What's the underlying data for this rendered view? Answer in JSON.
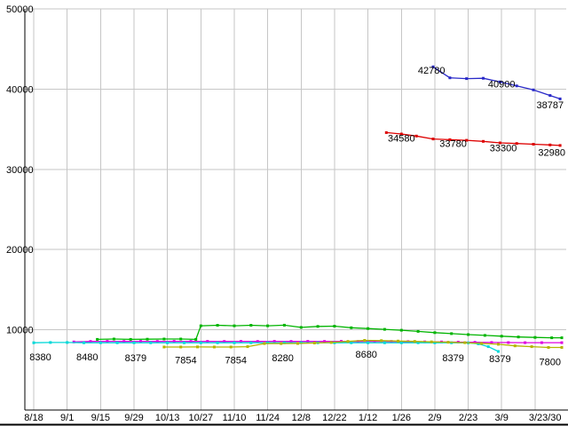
{
  "chart_data": {
    "type": "line",
    "title": "",
    "xlabel": "",
    "ylabel": "",
    "ylim": [
      0,
      50000
    ],
    "grid": true,
    "legend": "none",
    "background": "#ffffff",
    "grid_color": "#c6c6c6",
    "axis_color": "#000000",
    "x_ticks": [
      {
        "label": "8/18",
        "t": 0
      },
      {
        "label": "9/1",
        "t": 1
      },
      {
        "label": "9/15",
        "t": 2
      },
      {
        "label": "9/29",
        "t": 3
      },
      {
        "label": "10/13",
        "t": 4
      },
      {
        "label": "10/27",
        "t": 5
      },
      {
        "label": "11/10",
        "t": 6
      },
      {
        "label": "11/24",
        "t": 7
      },
      {
        "label": "12/8",
        "t": 8
      },
      {
        "label": "12/22",
        "t": 9
      },
      {
        "label": "1/12",
        "t": 10
      },
      {
        "label": "1/26",
        "t": 11
      },
      {
        "label": "2/9",
        "t": 12
      },
      {
        "label": "2/23",
        "t": 13
      },
      {
        "label": "3/9",
        "t": 14
      },
      {
        "label": "3/23/30",
        "t": 15,
        "label_t": 15.3
      }
    ],
    "y_ticks": [
      {
        "label": "10000",
        "v": 10000
      },
      {
        "label": "20000",
        "v": 20000
      },
      {
        "label": "30000",
        "v": 30000
      },
      {
        "label": "40000",
        "v": 40000
      },
      {
        "label": "50000",
        "v": 50000
      }
    ],
    "series": [
      {
        "name": "series-blue",
        "color": "#2929c8",
        "points": [
          [
            11.95,
            42780
          ],
          [
            12.45,
            41400
          ],
          [
            12.95,
            41300
          ],
          [
            13.45,
            41350
          ],
          [
            13.95,
            40900
          ],
          [
            14.45,
            40400
          ],
          [
            14.95,
            39900
          ],
          [
            15.45,
            39200
          ],
          [
            15.75,
            38787
          ]
        ]
      },
      {
        "name": "series-red",
        "color": "#dd0000",
        "points": [
          [
            10.55,
            34580
          ],
          [
            11.0,
            34400
          ],
          [
            11.45,
            34150
          ],
          [
            11.95,
            33780
          ],
          [
            12.45,
            33700
          ],
          [
            12.95,
            33620
          ],
          [
            13.45,
            33480
          ],
          [
            13.95,
            33300
          ],
          [
            14.45,
            33220
          ],
          [
            14.95,
            33130
          ],
          [
            15.45,
            33040
          ],
          [
            15.75,
            32980
          ]
        ]
      },
      {
        "name": "series-green",
        "color": "#00b400",
        "points": [
          [
            1.9,
            8800
          ],
          [
            2.4,
            8850
          ],
          [
            2.9,
            8800
          ],
          [
            3.4,
            8830
          ],
          [
            3.9,
            8850
          ],
          [
            4.4,
            8850
          ],
          [
            4.85,
            8800
          ],
          [
            5.0,
            10500
          ],
          [
            5.5,
            10560
          ],
          [
            6.0,
            10500
          ],
          [
            6.5,
            10560
          ],
          [
            7.0,
            10500
          ],
          [
            7.5,
            10570
          ],
          [
            8.0,
            10300
          ],
          [
            8.5,
            10420
          ],
          [
            9.0,
            10450
          ],
          [
            9.5,
            10250
          ],
          [
            10.0,
            10150
          ],
          [
            10.5,
            10050
          ],
          [
            11.0,
            9950
          ],
          [
            11.5,
            9800
          ],
          [
            12.0,
            9650
          ],
          [
            12.5,
            9520
          ],
          [
            13.0,
            9400
          ],
          [
            13.5,
            9300
          ],
          [
            14.0,
            9200
          ],
          [
            14.5,
            9100
          ],
          [
            15.0,
            9050
          ],
          [
            15.5,
            9000
          ],
          [
            15.8,
            9000
          ]
        ]
      },
      {
        "name": "series-magenta",
        "color": "#e000e0",
        "points": [
          [
            1.2,
            8480
          ],
          [
            1.7,
            8550
          ],
          [
            2.2,
            8560
          ],
          [
            2.7,
            8550
          ],
          [
            3.2,
            8560
          ],
          [
            3.7,
            8550
          ],
          [
            4.2,
            8560
          ],
          [
            4.7,
            8550
          ],
          [
            5.2,
            8560
          ],
          [
            5.7,
            8550
          ],
          [
            6.2,
            8560
          ],
          [
            6.7,
            8550
          ],
          [
            7.2,
            8560
          ],
          [
            7.7,
            8550
          ],
          [
            8.2,
            8560
          ],
          [
            8.7,
            8550
          ],
          [
            9.2,
            8560
          ],
          [
            9.7,
            8550
          ],
          [
            10.2,
            8560
          ],
          [
            10.7,
            8550
          ],
          [
            11.2,
            8530
          ],
          [
            11.7,
            8500
          ],
          [
            12.2,
            8480
          ],
          [
            12.7,
            8460
          ],
          [
            13.2,
            8440
          ],
          [
            13.7,
            8420
          ],
          [
            14.2,
            8410
          ],
          [
            14.7,
            8400
          ],
          [
            15.2,
            8400
          ],
          [
            15.8,
            8400
          ]
        ]
      },
      {
        "name": "series-cyan",
        "color": "#00d8d8",
        "points": [
          [
            0.0,
            8380
          ],
          [
            0.5,
            8420
          ],
          [
            1.0,
            8420
          ],
          [
            1.5,
            8390
          ],
          [
            2.0,
            8380
          ],
          [
            2.5,
            8380
          ],
          [
            3.0,
            8380
          ],
          [
            3.5,
            8380
          ],
          [
            4.0,
            8380
          ],
          [
            4.5,
            8380
          ],
          [
            5.0,
            8380
          ],
          [
            5.5,
            8380
          ],
          [
            6.0,
            8380
          ],
          [
            6.5,
            8380
          ],
          [
            7.0,
            8380
          ],
          [
            7.5,
            8380
          ],
          [
            8.0,
            8380
          ],
          [
            8.5,
            8380
          ],
          [
            9.0,
            8380
          ],
          [
            9.5,
            8380
          ],
          [
            10.0,
            8380
          ],
          [
            10.5,
            8380
          ],
          [
            11.0,
            8380
          ],
          [
            11.5,
            8380
          ],
          [
            12.0,
            8380
          ],
          [
            12.5,
            8380
          ],
          [
            13.0,
            8379
          ],
          [
            13.3,
            8250
          ],
          [
            13.6,
            7900
          ],
          [
            13.9,
            7300
          ]
        ]
      },
      {
        "name": "series-olive",
        "color": "#b4b400",
        "points": [
          [
            3.9,
            7854
          ],
          [
            4.4,
            7854
          ],
          [
            4.9,
            7860
          ],
          [
            5.4,
            7854
          ],
          [
            5.9,
            7854
          ],
          [
            6.4,
            7900
          ],
          [
            6.9,
            8280
          ],
          [
            7.4,
            8280
          ],
          [
            7.9,
            8300
          ],
          [
            8.4,
            8350
          ],
          [
            8.9,
            8420
          ],
          [
            9.4,
            8550
          ],
          [
            9.9,
            8680
          ],
          [
            10.4,
            8650
          ],
          [
            10.9,
            8600
          ],
          [
            11.4,
            8550
          ],
          [
            11.9,
            8500
          ],
          [
            12.4,
            8450
          ],
          [
            12.9,
            8400
          ],
          [
            13.4,
            8300
          ],
          [
            13.9,
            8200
          ],
          [
            14.4,
            8000
          ],
          [
            14.9,
            7900
          ],
          [
            15.4,
            7800
          ],
          [
            15.8,
            7800
          ]
        ]
      }
    ],
    "annotations": [
      {
        "text": "42780",
        "x": 11.9,
        "v": 41900
      },
      {
        "text": "40900",
        "x": 14.0,
        "v": 40200
      },
      {
        "text": "38787",
        "x": 15.45,
        "v": 37600
      },
      {
        "text": "34580",
        "x": 11.0,
        "v": 33450
      },
      {
        "text": "33780",
        "x": 12.55,
        "v": 32800
      },
      {
        "text": "33300",
        "x": 14.05,
        "v": 32250
      },
      {
        "text": "32980",
        "x": 15.5,
        "v": 31700
      },
      {
        "text": "8380",
        "x": 0.2,
        "v": 6200
      },
      {
        "text": "8480",
        "x": 1.6,
        "v": 6200
      },
      {
        "text": "8379",
        "x": 3.05,
        "v": 6100
      },
      {
        "text": "7854",
        "x": 4.55,
        "v": 5800
      },
      {
        "text": "7854",
        "x": 6.05,
        "v": 5800
      },
      {
        "text": "8280",
        "x": 7.45,
        "v": 6100
      },
      {
        "text": "8680",
        "x": 9.95,
        "v": 6500
      },
      {
        "text": "8379",
        "x": 12.55,
        "v": 6100
      },
      {
        "text": "8379",
        "x": 13.95,
        "v": 6000
      },
      {
        "text": "7800",
        "x": 15.45,
        "v": 5600
      }
    ]
  }
}
